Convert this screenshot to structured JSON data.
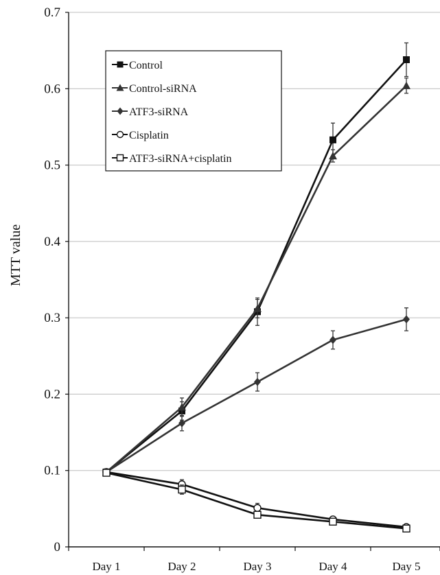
{
  "chart_data": {
    "type": "line",
    "title": "",
    "xlabel": "",
    "ylabel": "MTT value",
    "ylim": [
      0,
      0.7
    ],
    "yticks": [
      "0",
      "0.1",
      "0.2",
      "0.3",
      "0.4",
      "0.5",
      "0.6",
      "0.7"
    ],
    "categories": [
      "Day 1",
      "Day 2",
      "Day 3",
      "Day 4",
      "Day 5"
    ],
    "grid": "horizontal",
    "legend_position": "top-left",
    "series": [
      {
        "name": "Control",
        "marker": "filled-square",
        "color": "#111111",
        "values": [
          0.098,
          0.178,
          0.308,
          0.533,
          0.638
        ],
        "errors": [
          0.004,
          0.012,
          0.018,
          0.022,
          0.022
        ]
      },
      {
        "name": "Control-siRNA",
        "marker": "filled-triangle",
        "color": "#333333",
        "values": [
          0.098,
          0.183,
          0.312,
          0.512,
          0.604
        ],
        "errors": [
          0.004,
          0.012,
          0.012,
          0.008,
          0.01
        ]
      },
      {
        "name": "ATF3-siRNA",
        "marker": "filled-diamond",
        "color": "#333333",
        "values": [
          0.098,
          0.162,
          0.216,
          0.271,
          0.298
        ],
        "errors": [
          0.004,
          0.01,
          0.012,
          0.012,
          0.015
        ]
      },
      {
        "name": "Cisplatin",
        "marker": "open-circle",
        "color": "#111111",
        "values": [
          0.098,
          0.082,
          0.051,
          0.036,
          0.026
        ],
        "errors": [
          0.004,
          0.006,
          0.006,
          0.003,
          0.002
        ]
      },
      {
        "name": "ATF3-siRNA+cisplatin",
        "marker": "open-square",
        "color": "#111111",
        "values": [
          0.097,
          0.075,
          0.042,
          0.033,
          0.024
        ],
        "errors": [
          0.004,
          0.006,
          0.004,
          0.003,
          0.002
        ]
      }
    ]
  }
}
